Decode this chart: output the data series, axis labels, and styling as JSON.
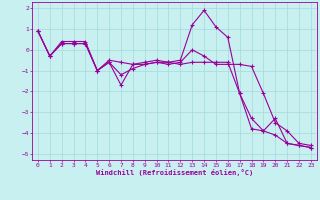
{
  "xlabel": "Windchill (Refroidissement éolien,°C)",
  "bg_color": "#c8f0f0",
  "line_color": "#990099",
  "grid_color": "#aadddd",
  "xlim": [
    -0.5,
    23.5
  ],
  "ylim": [
    -5.3,
    2.3
  ],
  "yticks": [
    2,
    1,
    0,
    -1,
    -2,
    -3,
    -4,
    -5
  ],
  "xticks": [
    0,
    1,
    2,
    3,
    4,
    5,
    6,
    7,
    8,
    9,
    10,
    11,
    12,
    13,
    14,
    15,
    16,
    17,
    18,
    19,
    20,
    21,
    22,
    23
  ],
  "series": [
    [
      0.9,
      -0.3,
      0.3,
      0.3,
      0.3,
      -1.0,
      -0.6,
      -1.7,
      -0.7,
      -0.6,
      -0.5,
      -0.6,
      -0.5,
      1.2,
      1.9,
      1.1,
      0.6,
      -2.1,
      -3.3,
      -3.9,
      -3.3,
      -4.5,
      -4.6,
      -4.7
    ],
    [
      0.9,
      -0.3,
      0.3,
      0.3,
      0.3,
      -1.0,
      -0.6,
      -1.2,
      -0.9,
      -0.7,
      -0.6,
      -0.7,
      -0.6,
      0.0,
      -0.3,
      -0.7,
      -0.7,
      -0.7,
      -0.8,
      -2.1,
      -3.5,
      -3.9,
      -4.5,
      -4.6
    ],
    [
      0.9,
      -0.3,
      0.4,
      0.4,
      0.4,
      -1.0,
      -0.5,
      -0.6,
      -0.7,
      -0.7,
      -0.6,
      -0.6,
      -0.7,
      -0.6,
      -0.6,
      -0.6,
      -0.6,
      -2.1,
      -3.8,
      -3.9,
      -4.1,
      -4.5,
      -4.6,
      -4.7
    ]
  ]
}
